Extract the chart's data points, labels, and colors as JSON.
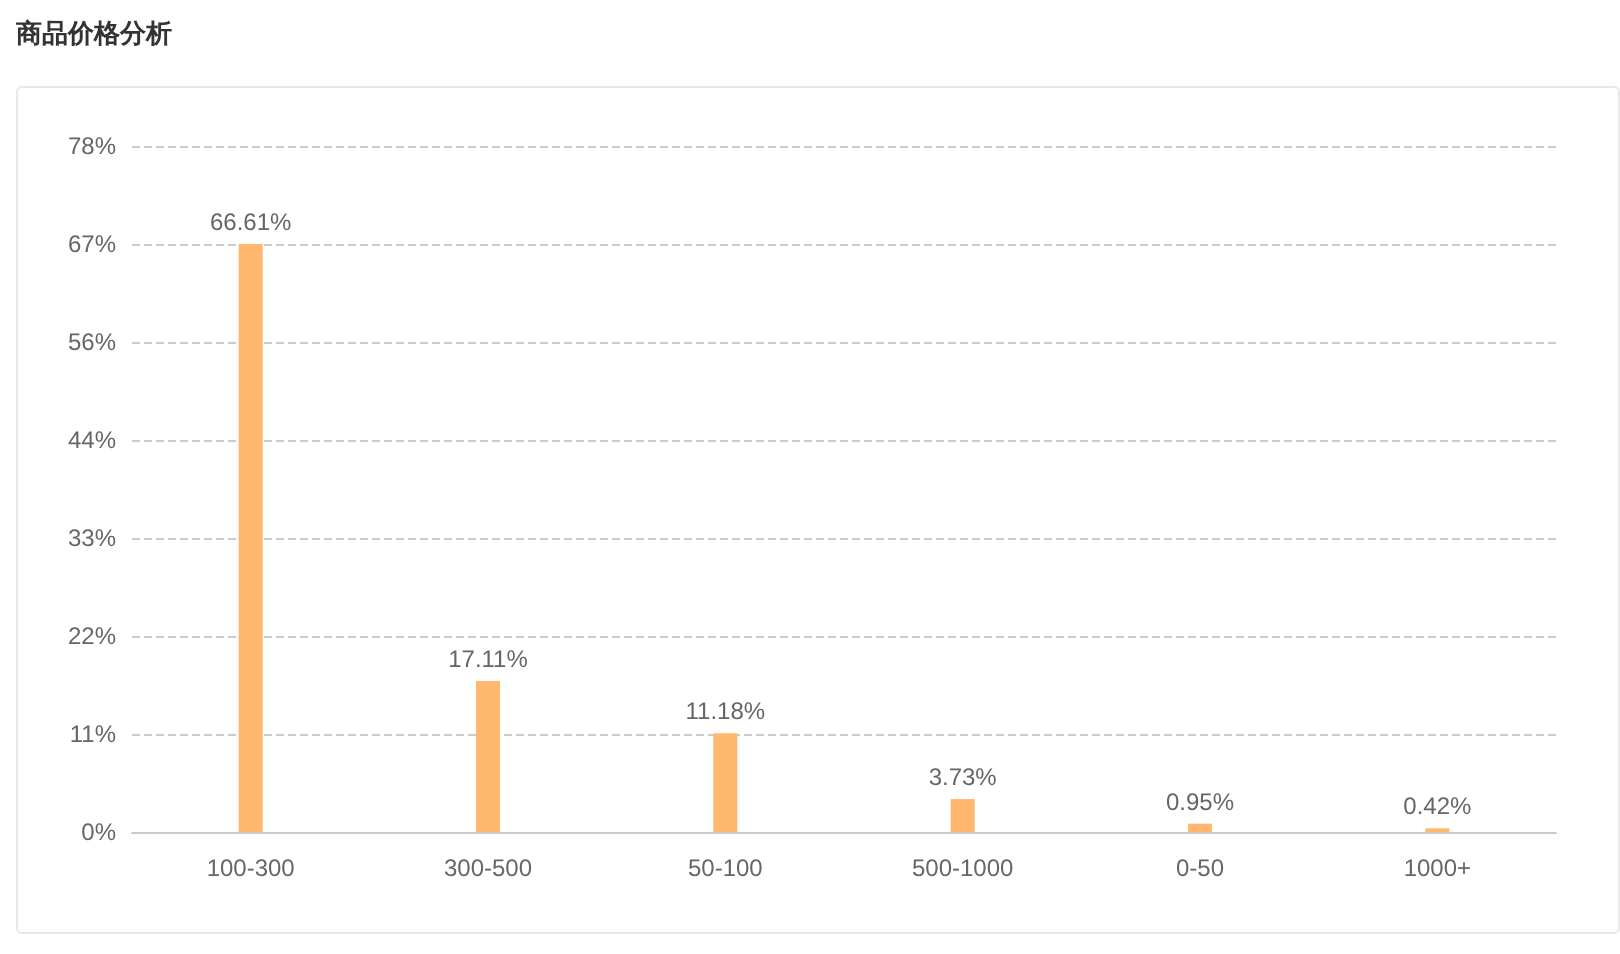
{
  "chart_data": {
    "type": "bar",
    "title": "商品价格分析",
    "categories": [
      "100-300",
      "300-500",
      "50-100",
      "500-1000",
      "0-50",
      "1000+"
    ],
    "values": [
      66.61,
      17.11,
      11.18,
      3.73,
      0.95,
      0.42
    ],
    "value_labels": [
      "66.61%",
      "17.11%",
      "11.18%",
      "3.73%",
      "0.95%",
      "0.42%"
    ],
    "color": "#ffb86e",
    "ylim": [
      0,
      77.7
    ],
    "yticks": [
      {
        "value": 0,
        "label": "0%"
      },
      {
        "value": 11.1,
        "label": "11%"
      },
      {
        "value": 22.2,
        "label": "22%"
      },
      {
        "value": 33.3,
        "label": "33%"
      },
      {
        "value": 44.4,
        "label": "44%"
      },
      {
        "value": 55.5,
        "label": "56%"
      },
      {
        "value": 66.6,
        "label": "67%"
      },
      {
        "value": 77.7,
        "label": "78%"
      }
    ],
    "grid": "y"
  }
}
